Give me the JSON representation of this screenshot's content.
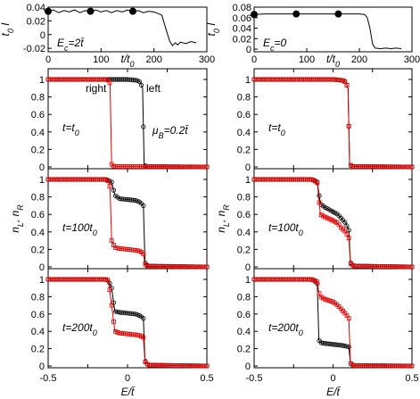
{
  "figure": {
    "top_panels": [
      {
        "ylabel": "t_0 I",
        "xlabel": "t/t_0",
        "annotation": "E_c=2t̄",
        "yticks": [
          "0.04",
          "0.02",
          "0",
          "-0.02"
        ],
        "xticks": [
          "0",
          "100",
          "200",
          "300"
        ],
        "xlim": [
          0,
          300
        ],
        "ylim": [
          -0.025,
          0.04
        ]
      },
      {
        "ylabel": "t_0 I",
        "xlabel": "t/t_0",
        "annotation": "E_c=0",
        "yticks": [
          "0.08",
          "0.06",
          "0.04",
          "0.02",
          "0"
        ],
        "xticks": [
          "0",
          "100",
          "200",
          "300"
        ],
        "xlim": [
          0,
          300
        ],
        "ylim": [
          -0.005,
          0.08
        ]
      }
    ],
    "left_column": {
      "ylabel": "n_L, n_R",
      "xlabel": "E/t̄",
      "xticks": [
        "-0.5",
        "0",
        "0.5"
      ],
      "yticks": [
        "1",
        "0.8",
        "0.6",
        "0.4",
        "0.2",
        "0"
      ],
      "legend_right": "right",
      "legend_left": "left",
      "mu_label": "μ_B=0.2t̄",
      "panel_labels": [
        "t=t_0",
        "t=100t_0",
        "t=200t_0"
      ]
    },
    "right_column": {
      "ylabel": "n_L, n_R",
      "xlabel": "E/t̄",
      "xticks": [
        "-0.5",
        "0",
        "0.5"
      ],
      "yticks": [
        "1",
        "0.8",
        "0.6",
        "0.4",
        "0.2",
        "0"
      ],
      "panel_labels": [
        "t=t_0",
        "t=100t_0",
        "t=200t_0"
      ]
    }
  },
  "chart_data": [
    {
      "type": "line",
      "panel": "top-left current",
      "x": [
        0,
        10,
        20,
        30,
        40,
        50,
        60,
        70,
        80,
        90,
        100,
        110,
        120,
        130,
        140,
        150,
        160,
        170,
        180,
        190,
        200,
        210,
        215,
        220,
        225,
        230,
        235,
        240,
        245,
        250,
        260,
        270,
        280
      ],
      "y": [
        0.034,
        0.036,
        0.032,
        0.035,
        0.033,
        0.036,
        0.032,
        0.035,
        0.033,
        0.036,
        0.033,
        0.035,
        0.032,
        0.035,
        0.033,
        0.036,
        0.033,
        0.035,
        0.032,
        0.034,
        0.033,
        0.03,
        0.028,
        0.015,
        0.002,
        -0.01,
        -0.016,
        -0.012,
        -0.015,
        -0.011,
        -0.013,
        -0.01,
        -0.012
      ],
      "markers": {
        "x": [
          0,
          80,
          160
        ],
        "y": [
          0.034,
          0.034,
          0.034
        ]
      },
      "xlim": [
        0,
        300
      ],
      "ylim": [
        -0.025,
        0.04
      ]
    },
    {
      "type": "line",
      "panel": "top-right current",
      "x": [
        0,
        20,
        40,
        60,
        80,
        100,
        120,
        140,
        160,
        180,
        200,
        210,
        215,
        220,
        225,
        230,
        240,
        250,
        260,
        270,
        280
      ],
      "y": [
        0.066,
        0.067,
        0.067,
        0.067,
        0.067,
        0.067,
        0.067,
        0.067,
        0.067,
        0.067,
        0.067,
        0.066,
        0.06,
        0.04,
        0.01,
        0.002,
        0.001,
        0.002,
        0.001,
        0.002,
        0.001
      ],
      "markers": {
        "x": [
          0,
          80,
          160
        ],
        "y": [
          0.066,
          0.067,
          0.067
        ]
      },
      "xlim": [
        0,
        300
      ],
      "ylim": [
        -0.005,
        0.08
      ]
    },
    {
      "type": "line",
      "panel": "left t=t0",
      "series": [
        {
          "name": "left",
          "x": [
            -0.5,
            0.0,
            0.06,
            0.08,
            0.095,
            0.105,
            0.12,
            0.5
          ],
          "y": [
            1,
            1,
            0.99,
            0.97,
            0.9,
            0.02,
            0.005,
            0
          ]
        },
        {
          "name": "right",
          "x": [
            -0.5,
            -0.14,
            -0.12,
            -0.11,
            -0.1,
            -0.09,
            -0.07,
            0.5
          ],
          "y": [
            1,
            1,
            0.99,
            0.95,
            0.03,
            0.01,
            0.005,
            0
          ]
        }
      ]
    },
    {
      "type": "line",
      "panel": "left t=100t0",
      "series": [
        {
          "name": "left",
          "x": [
            -0.5,
            -0.14,
            -0.12,
            -0.1,
            -0.08,
            -0.05,
            0.0,
            0.05,
            0.08,
            0.1,
            0.11,
            0.13,
            0.5
          ],
          "y": [
            1,
            1,
            0.99,
            0.97,
            0.82,
            0.78,
            0.77,
            0.76,
            0.74,
            0.7,
            0.05,
            0.01,
            0
          ]
        },
        {
          "name": "right",
          "x": [
            -0.5,
            -0.14,
            -0.12,
            -0.11,
            -0.1,
            -0.08,
            -0.05,
            0.0,
            0.05,
            0.08,
            0.1,
            0.11,
            0.13,
            0.5
          ],
          "y": [
            1,
            1,
            0.98,
            0.9,
            0.3,
            0.22,
            0.21,
            0.2,
            0.19,
            0.18,
            0.15,
            0.03,
            0.005,
            0
          ]
        }
      ]
    },
    {
      "type": "line",
      "panel": "left t=200t0",
      "series": [
        {
          "name": "left",
          "x": [
            -0.5,
            -0.14,
            -0.12,
            -0.1,
            -0.08,
            -0.05,
            0.0,
            0.05,
            0.08,
            0.1,
            0.11,
            0.13,
            0.5
          ],
          "y": [
            1,
            1,
            0.99,
            0.9,
            0.63,
            0.62,
            0.61,
            0.6,
            0.58,
            0.55,
            0.06,
            0.01,
            0
          ]
        },
        {
          "name": "right",
          "x": [
            -0.5,
            -0.14,
            -0.12,
            -0.1,
            -0.08,
            -0.05,
            0.0,
            0.05,
            0.08,
            0.1,
            0.11,
            0.13,
            0.5
          ],
          "y": [
            1,
            1,
            0.99,
            0.7,
            0.4,
            0.38,
            0.37,
            0.36,
            0.35,
            0.33,
            0.05,
            0.01,
            0
          ]
        }
      ]
    },
    {
      "type": "line",
      "panel": "right t=t0",
      "series": [
        {
          "name": "left",
          "x": [
            -0.5,
            0.0,
            0.06,
            0.08,
            0.095,
            0.105,
            0.12,
            0.5
          ],
          "y": [
            1,
            1,
            0.99,
            0.97,
            0.9,
            0.03,
            0.005,
            0
          ]
        },
        {
          "name": "right",
          "x": [
            -0.5,
            0.0,
            0.06,
            0.08,
            0.095,
            0.105,
            0.12,
            0.5
          ],
          "y": [
            1,
            1,
            0.99,
            0.97,
            0.9,
            0.03,
            0.005,
            0
          ]
        }
      ]
    },
    {
      "type": "line",
      "panel": "right t=100t0",
      "series": [
        {
          "name": "left",
          "x": [
            -0.5,
            -0.14,
            -0.12,
            -0.1,
            -0.08,
            -0.05,
            0.0,
            0.03,
            0.05,
            0.08,
            0.1,
            0.11,
            0.13,
            0.5
          ],
          "y": [
            1,
            1,
            0.99,
            0.97,
            0.72,
            0.68,
            0.63,
            0.6,
            0.56,
            0.5,
            0.42,
            0.05,
            0.01,
            0
          ]
        },
        {
          "name": "right",
          "x": [
            -0.5,
            -0.14,
            -0.12,
            -0.1,
            -0.08,
            -0.05,
            0.0,
            0.03,
            0.05,
            0.08,
            0.1,
            0.11,
            0.13,
            0.5
          ],
          "y": [
            1,
            1,
            0.99,
            0.96,
            0.6,
            0.57,
            0.53,
            0.5,
            0.45,
            0.4,
            0.33,
            0.04,
            0.01,
            0
          ]
        }
      ]
    },
    {
      "type": "line",
      "panel": "right t=200t0",
      "series": [
        {
          "name": "left",
          "x": [
            -0.5,
            -0.14,
            -0.12,
            -0.1,
            -0.09,
            -0.08,
            -0.05,
            0.0,
            0.05,
            0.08,
            0.1,
            0.11,
            0.13,
            0.5
          ],
          "y": [
            1,
            1,
            0.99,
            0.95,
            0.3,
            0.27,
            0.26,
            0.25,
            0.24,
            0.23,
            0.22,
            0.03,
            0.005,
            0
          ]
        },
        {
          "name": "right",
          "x": [
            -0.5,
            -0.14,
            -0.12,
            -0.1,
            -0.09,
            -0.08,
            -0.05,
            0.0,
            0.03,
            0.05,
            0.08,
            0.1,
            0.11,
            0.13,
            0.5
          ],
          "y": [
            1,
            1,
            0.99,
            0.97,
            0.85,
            0.8,
            0.77,
            0.74,
            0.7,
            0.66,
            0.6,
            0.55,
            0.03,
            0.005,
            0
          ]
        }
      ]
    }
  ]
}
